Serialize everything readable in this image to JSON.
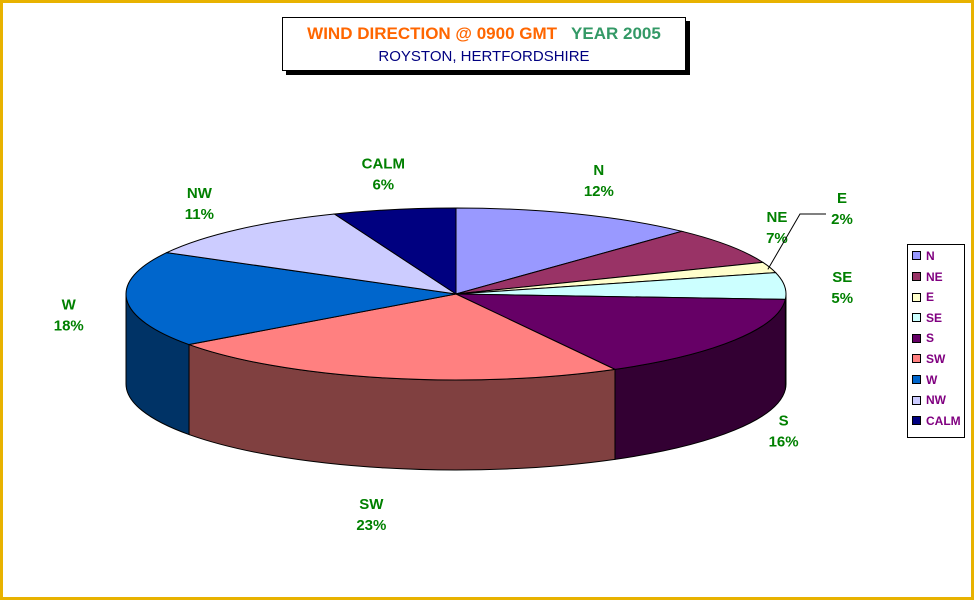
{
  "title": {
    "main": "WIND DIRECTION @ 0900 GMT",
    "year": "YEAR 2005",
    "subtitle": "ROYSTON, HERTFORDSHIRE"
  },
  "chart_data": {
    "type": "pie",
    "categories": [
      "N",
      "NE",
      "E",
      "SE",
      "S",
      "SW",
      "W",
      "NW",
      "CALM"
    ],
    "values": [
      12,
      7,
      2,
      5,
      16,
      23,
      18,
      11,
      6
    ],
    "value_labels": [
      "12%",
      "7%",
      "2%",
      "5%",
      "16%",
      "23%",
      "18%",
      "11%",
      "6%"
    ],
    "colors": [
      "#9999ff",
      "#993366",
      "#ffffcc",
      "#ccffff",
      "#660066",
      "#ff8080",
      "#0066cc",
      "#ccccff",
      "#000080"
    ],
    "legend_position": "right",
    "style": "3d"
  }
}
